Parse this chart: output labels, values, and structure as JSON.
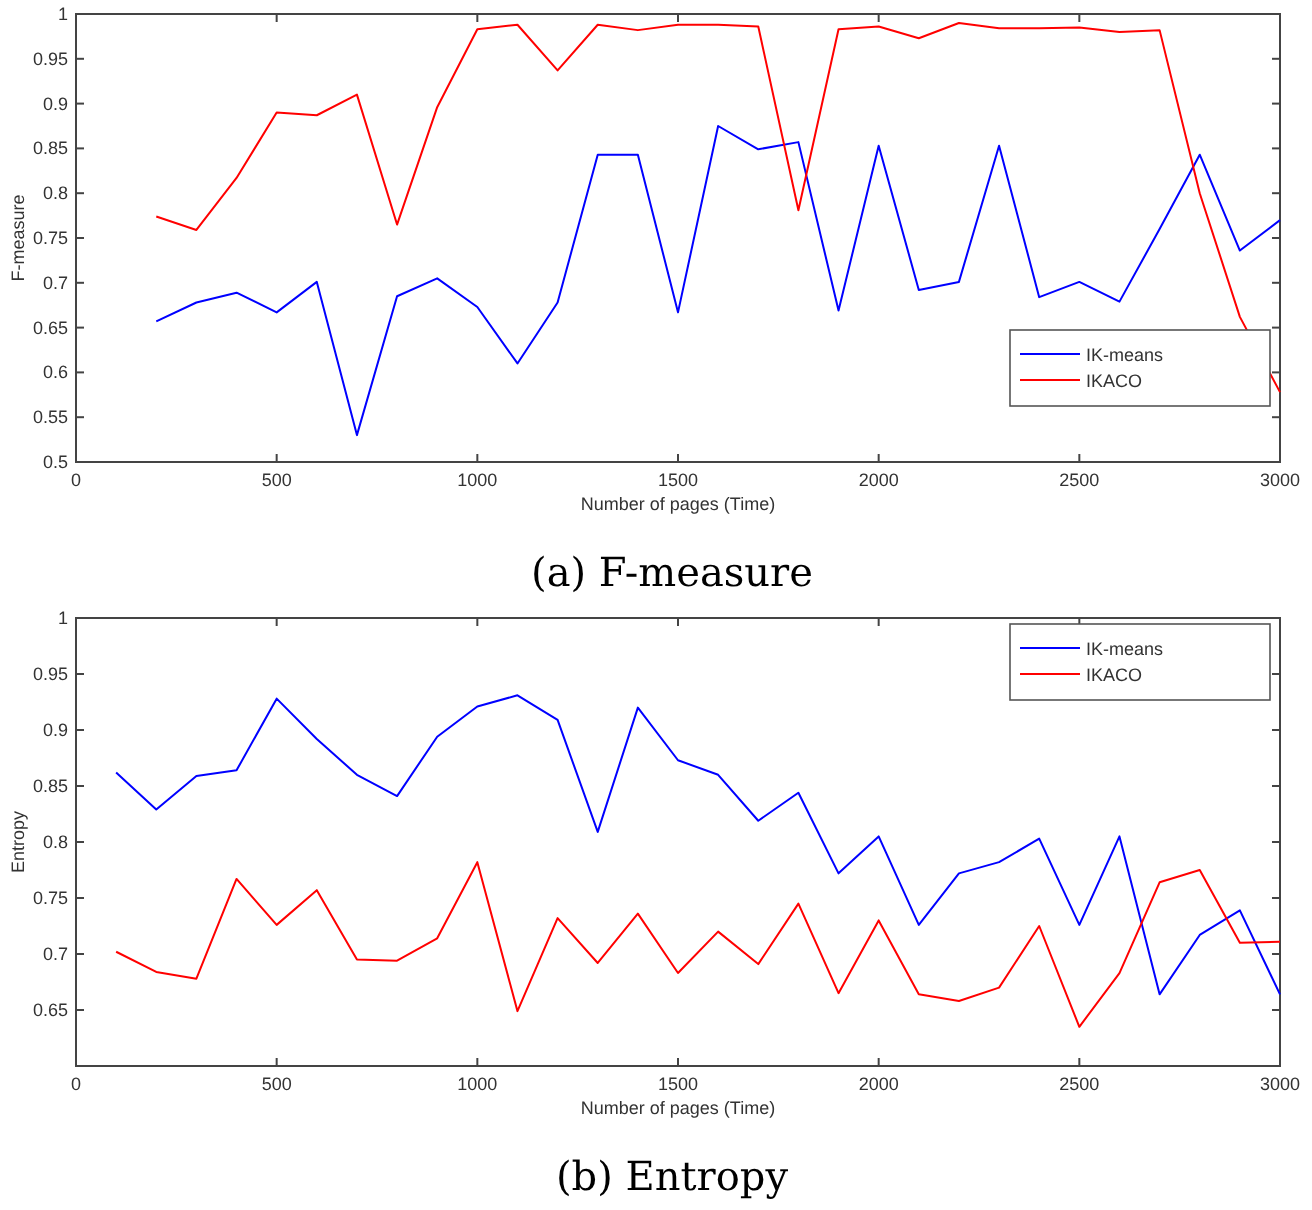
{
  "chart_data": [
    {
      "type": "line",
      "xlabel": "Number of pages (Time)",
      "ylabel": "F-measure",
      "annotations": [
        "(a) F-measure"
      ],
      "x": [
        200,
        300,
        400,
        500,
        600,
        700,
        800,
        900,
        1000,
        1100,
        1200,
        1300,
        1400,
        1500,
        1600,
        1700,
        1800,
        1900,
        2000,
        2100,
        2200,
        2300,
        2400,
        2500,
        2600,
        2700,
        2800,
        2900,
        3000
      ],
      "series": [
        {
          "name": "IK-means",
          "color": "#0000ff",
          "values": [
            0.657,
            0.678,
            0.689,
            0.667,
            0.701,
            0.53,
            0.685,
            0.705,
            0.673,
            0.61,
            0.678,
            0.843,
            0.843,
            0.667,
            0.875,
            0.849,
            0.857,
            0.669,
            0.853,
            0.692,
            0.701,
            0.853,
            0.684,
            0.701,
            0.679,
            0.76,
            0.843,
            0.736,
            0.77
          ]
        },
        {
          "name": "IKACO",
          "color": "#ff0000",
          "values": [
            0.774,
            0.759,
            0.817,
            0.89,
            0.887,
            0.91,
            0.765,
            0.896,
            0.983,
            0.988,
            0.937,
            0.988,
            0.982,
            0.988,
            0.988,
            0.986,
            0.781,
            0.983,
            0.986,
            0.973,
            0.99,
            0.984,
            0.984,
            0.985,
            0.98,
            0.982,
            0.8,
            0.662,
            0.578
          ]
        }
      ],
      "xlim": [
        0,
        3000
      ],
      "xticks": [
        0,
        500,
        1000,
        1500,
        2000,
        2500,
        3000
      ],
      "ylim": [
        0.5,
        1
      ],
      "yticks": [
        0.5,
        0.55,
        0.6,
        0.65,
        0.7,
        0.75,
        0.8,
        0.85,
        0.9,
        0.95,
        1
      ],
      "legend": "bottom right",
      "grid": false
    },
    {
      "type": "line",
      "xlabel": "Number of pages (Time)",
      "ylabel": "Entropy",
      "annotations": [
        "(b) Entropy"
      ],
      "x": [
        100,
        200,
        300,
        400,
        500,
        600,
        700,
        800,
        900,
        1000,
        1100,
        1200,
        1300,
        1400,
        1500,
        1600,
        1700,
        1800,
        1900,
        2000,
        2100,
        2200,
        2300,
        2400,
        2500,
        2600,
        2700,
        2800,
        2900,
        3000
      ],
      "series": [
        {
          "name": "IK-means",
          "color": "#0000ff",
          "values": [
            0.862,
            0.829,
            0.859,
            0.864,
            0.928,
            0.892,
            0.86,
            0.841,
            0.894,
            0.921,
            0.931,
            0.909,
            0.809,
            0.92,
            0.873,
            0.86,
            0.819,
            0.844,
            0.772,
            0.805,
            0.726,
            0.772,
            0.782,
            0.803,
            0.726,
            0.805,
            0.664,
            0.717,
            0.739,
            0.664
          ]
        },
        {
          "name": "IKACO",
          "color": "#ff0000",
          "values": [
            0.702,
            0.684,
            0.678,
            0.767,
            0.726,
            0.757,
            0.695,
            0.694,
            0.714,
            0.782,
            0.649,
            0.732,
            0.692,
            0.736,
            0.683,
            0.72,
            0.691,
            0.745,
            0.665,
            0.73,
            0.664,
            0.658,
            0.67,
            0.725,
            0.635,
            0.683,
            0.764,
            0.775,
            0.71,
            0.711
          ]
        }
      ],
      "xlim": [
        0,
        3000
      ],
      "xticks": [
        0,
        500,
        1000,
        1500,
        2000,
        2500,
        3000
      ],
      "ylim": [
        0.6,
        1
      ],
      "yticks": [
        0.65,
        0.7,
        0.75,
        0.8,
        0.85,
        0.9,
        0.95,
        1
      ],
      "legend": "top right",
      "grid": false
    }
  ]
}
